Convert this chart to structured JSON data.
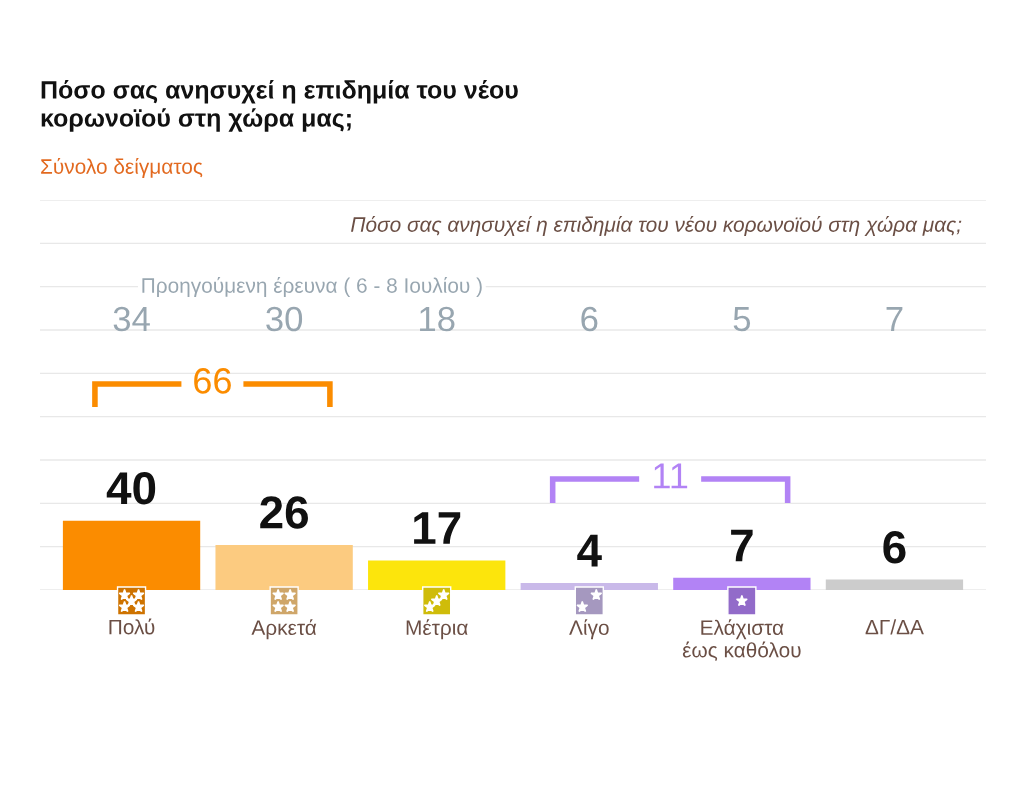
{
  "chart_data": {
    "type": "bar",
    "title": "Πόσο σας ανησυχεί η επιδημία του νέου κορωνοϊού στη χώρα μας;",
    "subtitle": "Σύνολο δείγματος",
    "annotations": [
      "Πόσο σας ανησυχεί η επιδημία του νέου κορωνοϊού στη χώρα μας;",
      "Προηγούμενη έρευνα ( 6 - 8 Ιουλίου )",
      "34",
      "30",
      "18",
      "6",
      "5",
      "7",
      "66",
      "11"
    ],
    "categories": [
      "Πολύ",
      "Αρκετά",
      "Μέτρια",
      "Λίγο",
      "Ελάχιστα έως καθόλου",
      "ΔΓ/ΔΑ"
    ],
    "colors": [
      "#fb8c00",
      "#fccb80",
      "#fce50c",
      "#c9b9e9",
      "#b283f5",
      "#cccccc"
    ],
    "values": [
      40,
      26,
      17,
      4,
      7,
      6
    ],
    "data_labels": true,
    "ylim": [
      0,
      225
    ],
    "yticks": [
      {
        "value": 0,
        "label": null
      },
      {
        "value": 25,
        "label": null
      },
      {
        "value": 50,
        "label": null
      },
      {
        "value": 75,
        "label": null
      },
      {
        "value": 100,
        "label": null
      },
      {
        "value": 125,
        "label": null
      },
      {
        "value": 150,
        "label": null
      },
      {
        "value": 175,
        "label": null
      },
      {
        "value": 200,
        "label": null
      },
      {
        "value": 225,
        "label": null
      }
    ],
    "grid": "y",
    "tick_labels": "x"
  }
}
